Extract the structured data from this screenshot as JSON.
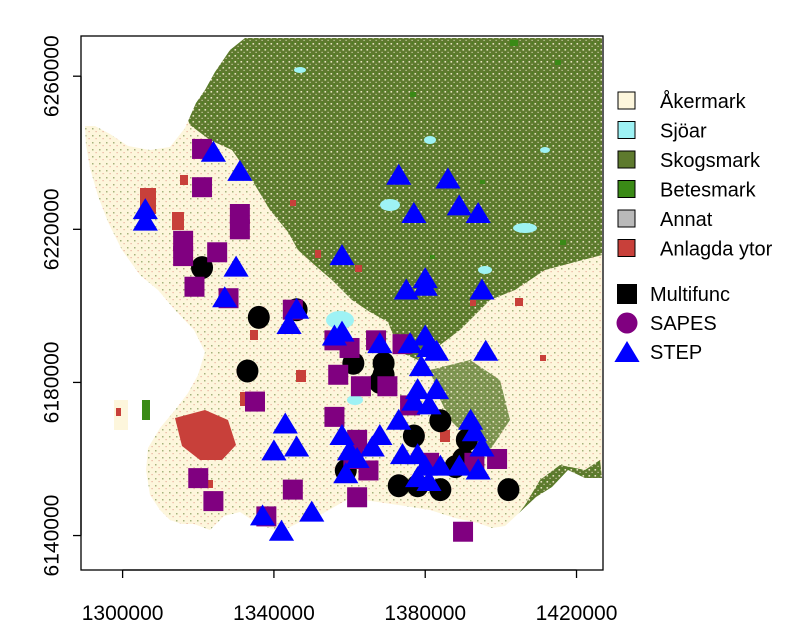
{
  "map": {
    "x_ticks": [
      "1300000",
      "1340000",
      "1380000",
      "1420000"
    ],
    "x_tick_values": [
      1300000,
      1340000,
      1380000,
      1420000
    ],
    "y_ticks": [
      "6140000",
      "6180000",
      "6220000",
      "6260000"
    ],
    "y_tick_values": [
      6140000,
      6180000,
      6220000,
      6260000
    ],
    "xlim": [
      1289000,
      1427000
    ],
    "ylim": [
      6131000,
      6270500
    ],
    "landcover_legend": [
      {
        "label": "Åkermark",
        "color": "#fdf6dc"
      },
      {
        "label": "Sjöar",
        "color": "#9ef2f4"
      },
      {
        "label": "Skogsmark",
        "color": "#5e7a2e"
      },
      {
        "label": "Betesmark",
        "color": "#3a8a16"
      },
      {
        "label": "Annat",
        "color": "#b9b9b9"
      },
      {
        "label": "Anlagda ytor",
        "color": "#c8403a"
      }
    ],
    "site_legend": [
      {
        "label": "Multifunc",
        "shape": "circle",
        "color": "#000000"
      },
      {
        "label": "SAPES",
        "shape": "circle",
        "color": "#800080"
      },
      {
        "label": "STEP",
        "shape": "triangle",
        "color": "#0000ff"
      }
    ],
    "sites": {
      "multifunc": [
        [
          1321000,
          6210000
        ],
        [
          1336000,
          6197000
        ],
        [
          1346000,
          6199000
        ],
        [
          1361000,
          6185000
        ],
        [
          1369000,
          6185000
        ],
        [
          1368000,
          6180000
        ],
        [
          1369000,
          6182000
        ],
        [
          1333000,
          6183000
        ],
        [
          1377000,
          6166000
        ],
        [
          1384000,
          6170000
        ],
        [
          1391000,
          6165000
        ],
        [
          1390000,
          6160000
        ],
        [
          1388000,
          6158000
        ],
        [
          1359000,
          6157000
        ],
        [
          1373000,
          6153000
        ],
        [
          1384000,
          6152000
        ],
        [
          1402000,
          6152000
        ],
        [
          1378000,
          6153000
        ]
      ],
      "sapes": [
        [
          1321000,
          6241000
        ],
        [
          1321000,
          6231000
        ],
        [
          1331000,
          6224000
        ],
        [
          1331000,
          6220000
        ],
        [
          1316000,
          6217000
        ],
        [
          1316000,
          6213000
        ],
        [
          1325000,
          6214000
        ],
        [
          1319000,
          6205000
        ],
        [
          1328000,
          6202000
        ],
        [
          1345000,
          6199000
        ],
        [
          1356000,
          6191000
        ],
        [
          1360000,
          6189000
        ],
        [
          1367000,
          6191000
        ],
        [
          1374000,
          6190000
        ],
        [
          1357000,
          6182000
        ],
        [
          1363000,
          6179000
        ],
        [
          1370000,
          6179000
        ],
        [
          1376000,
          6174000
        ],
        [
          1335000,
          6175000
        ],
        [
          1356000,
          6171000
        ],
        [
          1362000,
          6165000
        ],
        [
          1365000,
          6157000
        ],
        [
          1361000,
          6160000
        ],
        [
          1381000,
          6159000
        ],
        [
          1393000,
          6159000
        ],
        [
          1399000,
          6160000
        ],
        [
          1320000,
          6155000
        ],
        [
          1324000,
          6149000
        ],
        [
          1345000,
          6152000
        ],
        [
          1362000,
          6150000
        ],
        [
          1338000,
          6145000
        ],
        [
          1390000,
          6141000
        ]
      ],
      "step": [
        [
          1324000,
          6240000
        ],
        [
          1331000,
          6235000
        ],
        [
          1306000,
          6225000
        ],
        [
          1306000,
          6222000
        ],
        [
          1330000,
          6210000
        ],
        [
          1327000,
          6202000
        ],
        [
          1346000,
          6199000
        ],
        [
          1344000,
          6195000
        ],
        [
          1356000,
          6192000
        ],
        [
          1358000,
          6193000
        ],
        [
          1368000,
          6190000
        ],
        [
          1376000,
          6190000
        ],
        [
          1380000,
          6192000
        ],
        [
          1381000,
          6189000
        ],
        [
          1383000,
          6188000
        ],
        [
          1379000,
          6184000
        ],
        [
          1378000,
          6178000
        ],
        [
          1377000,
          6175000
        ],
        [
          1381000,
          6174000
        ],
        [
          1383000,
          6178000
        ],
        [
          1396000,
          6188000
        ],
        [
          1373000,
          6234000
        ],
        [
          1377000,
          6224000
        ],
        [
          1386000,
          6233000
        ],
        [
          1389000,
          6226000
        ],
        [
          1394000,
          6224000
        ],
        [
          1358000,
          6213000
        ],
        [
          1375000,
          6204000
        ],
        [
          1380000,
          6207000
        ],
        [
          1380000,
          6205000
        ],
        [
          1395000,
          6204000
        ],
        [
          1343000,
          6169000
        ],
        [
          1340000,
          6162000
        ],
        [
          1346000,
          6163000
        ],
        [
          1358000,
          6166000
        ],
        [
          1360000,
          6162000
        ],
        [
          1362000,
          6160000
        ],
        [
          1366000,
          6163000
        ],
        [
          1368000,
          6166000
        ],
        [
          1373000,
          6170000
        ],
        [
          1374000,
          6161000
        ],
        [
          1378000,
          6161000
        ],
        [
          1380000,
          6158000
        ],
        [
          1384000,
          6158000
        ],
        [
          1389000,
          6158000
        ],
        [
          1392000,
          6170000
        ],
        [
          1393000,
          6167000
        ],
        [
          1395000,
          6163000
        ],
        [
          1394000,
          6157000
        ],
        [
          1359000,
          6156000
        ],
        [
          1337000,
          6145000
        ],
        [
          1342000,
          6141000
        ],
        [
          1350000,
          6146000
        ],
        [
          1378000,
          6155000
        ],
        [
          1381000,
          6154000
        ]
      ]
    }
  }
}
